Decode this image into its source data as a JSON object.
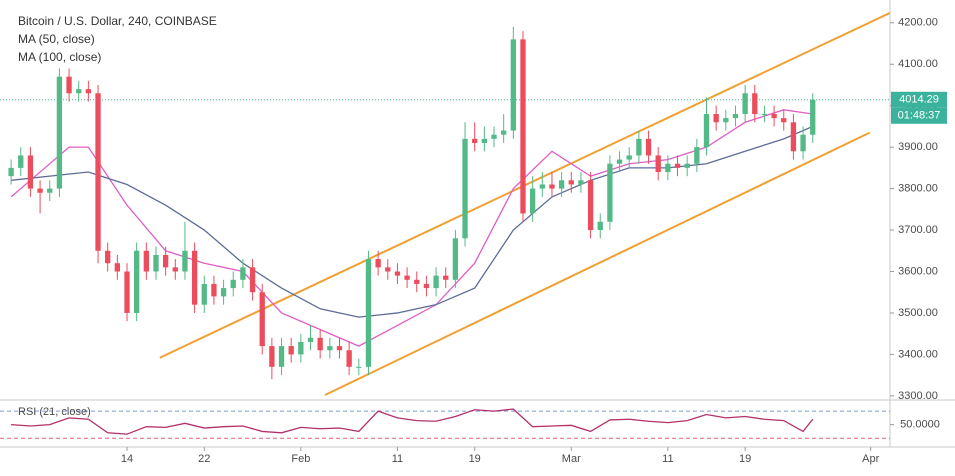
{
  "chart_data": {
    "type": "candlestick",
    "title": "Bitcoin / U.S. Dollar, 240, COINBASE",
    "x": [
      2,
      3,
      4,
      5,
      6,
      7,
      8,
      9,
      10,
      11,
      12,
      13,
      14,
      15,
      16,
      17,
      18,
      19,
      20,
      21,
      22,
      23,
      24,
      25,
      26,
      27,
      28,
      29,
      30,
      31,
      32,
      33,
      34,
      35,
      36,
      37,
      38,
      39,
      40,
      41,
      42,
      43,
      44,
      45,
      46,
      47,
      48,
      49,
      50,
      51,
      52,
      53,
      54,
      55,
      56,
      57,
      58,
      59,
      60,
      61,
      62,
      63,
      64,
      65,
      66,
      67,
      68,
      69,
      70,
      71,
      72,
      73,
      74,
      75,
      76,
      77,
      78,
      79,
      80,
      81,
      82,
      83,
      84,
      85
    ],
    "open": [
      3830,
      3850,
      3880,
      3800,
      3790,
      3800,
      4070,
      4030,
      4040,
      4030,
      3650,
      3620,
      3600,
      3500,
      3650,
      3600,
      3640,
      3610,
      3600,
      3650,
      3520,
      3570,
      3540,
      3560,
      3580,
      3610,
      3550,
      3420,
      3370,
      3420,
      3400,
      3430,
      3440,
      3410,
      3420,
      3410,
      3370,
      3370,
      3630,
      3610,
      3600,
      3590,
      3580,
      3570,
      3560,
      3590,
      3580,
      3680,
      3920,
      3910,
      3920,
      3930,
      3940,
      4160,
      3740,
      3800,
      3810,
      3800,
      3820,
      3810,
      3820,
      3700,
      3720,
      3860,
      3870,
      3880,
      3920,
      3880,
      3840,
      3860,
      3850,
      3860,
      3900,
      3980,
      3960,
      3970,
      3980,
      4030,
      3980,
      3980,
      3970,
      3960,
      3890,
      3930
    ],
    "high": [
      3870,
      3900,
      3900,
      3820,
      3820,
      4090,
      4090,
      4060,
      4060,
      4050,
      3670,
      3640,
      3620,
      3670,
      3670,
      3660,
      3660,
      3630,
      3720,
      3670,
      3590,
      3590,
      3580,
      3600,
      3630,
      3630,
      3570,
      3440,
      3440,
      3440,
      3450,
      3470,
      3460,
      3440,
      3440,
      3430,
      3390,
      3650,
      3650,
      3630,
      3620,
      3610,
      3600,
      3590,
      3610,
      3610,
      3700,
      3960,
      3960,
      3950,
      3950,
      3980,
      4190,
      4180,
      3830,
      3840,
      3840,
      3840,
      3840,
      3840,
      3840,
      3740,
      3880,
      3890,
      3900,
      3940,
      3940,
      3900,
      3880,
      3880,
      3880,
      3920,
      4020,
      4000,
      3990,
      4000,
      4050,
      4050,
      4000,
      4000,
      3990,
      3980,
      3950,
      4030
    ],
    "low": [
      3810,
      3830,
      3780,
      3740,
      3770,
      3780,
      4010,
      4010,
      4010,
      3620,
      3600,
      3580,
      3480,
      3480,
      3580,
      3580,
      3590,
      3580,
      3580,
      3500,
      3500,
      3520,
      3520,
      3540,
      3560,
      3530,
      3400,
      3340,
      3350,
      3380,
      3380,
      3410,
      3390,
      3390,
      3390,
      3350,
      3350,
      3350,
      3590,
      3580,
      3570,
      3560,
      3550,
      3540,
      3540,
      3560,
      3560,
      3660,
      3890,
      3890,
      3900,
      3910,
      3920,
      3720,
      3720,
      3780,
      3780,
      3780,
      3790,
      3790,
      3680,
      3680,
      3700,
      3840,
      3850,
      3860,
      3860,
      3820,
      3820,
      3830,
      3830,
      3840,
      3880,
      3940,
      3940,
      3950,
      3960,
      3960,
      3960,
      3950,
      3940,
      3870,
      3870,
      3910
    ],
    "close": [
      3850,
      3880,
      3800,
      3790,
      3800,
      4070,
      4030,
      4040,
      4030,
      3650,
      3620,
      3600,
      3500,
      3650,
      3600,
      3640,
      3610,
      3600,
      3650,
      3520,
      3570,
      3540,
      3560,
      3580,
      3610,
      3550,
      3420,
      3370,
      3420,
      3400,
      3430,
      3440,
      3410,
      3420,
      3410,
      3370,
      3370,
      3630,
      3610,
      3600,
      3590,
      3580,
      3570,
      3560,
      3590,
      3580,
      3680,
      3920,
      3910,
      3920,
      3930,
      3940,
      4160,
      3740,
      3800,
      3810,
      3800,
      3820,
      3810,
      3820,
      3700,
      3720,
      3860,
      3870,
      3880,
      3920,
      3880,
      3840,
      3860,
      3850,
      3860,
      3900,
      3980,
      3960,
      3970,
      3980,
      4030,
      3980,
      3980,
      3970,
      3960,
      3890,
      3930,
      4014.29
    ],
    "up_color": "#53b987",
    "down_color": "#eb4d5c",
    "xlim": [
      0.85,
      93
    ],
    "xticks": [
      {
        "value": 14,
        "label": "14"
      },
      {
        "value": 22,
        "label": "22"
      },
      {
        "value": 32,
        "label": "Feb"
      },
      {
        "value": 42,
        "label": "11"
      },
      {
        "value": 50,
        "label": "19"
      },
      {
        "value": 60,
        "label": "Mar"
      },
      {
        "value": 70,
        "label": "11"
      },
      {
        "value": 78,
        "label": "19"
      },
      {
        "value": 91,
        "label": "Apr"
      }
    ],
    "ylim": [
      3290,
      4255
    ],
    "yticks": [
      {
        "value": 3300,
        "label": "3300.00"
      },
      {
        "value": 3400,
        "label": "3400.00"
      },
      {
        "value": 3500,
        "label": "3500.00"
      },
      {
        "value": 3600,
        "label": "3600.00"
      },
      {
        "value": 3700,
        "label": "3700.00"
      },
      {
        "value": 3800,
        "label": "3800.00"
      },
      {
        "value": 3900,
        "label": "3900.00"
      },
      {
        "value": 4000,
        "label": "4000.00"
      },
      {
        "value": 4100,
        "label": "4100.00"
      },
      {
        "value": 4200,
        "label": "4200.00"
      }
    ],
    "moving_averages": [
      {
        "name": "MA (50, close)",
        "color": "#e05dc6",
        "x": [
          2,
          4,
          8,
          10,
          14,
          18,
          22,
          26,
          30,
          34,
          38,
          42,
          46,
          50,
          54,
          58,
          62,
          66,
          70,
          74,
          78,
          82,
          85
        ],
        "values": [
          3780,
          3820,
          3900,
          3900,
          3760,
          3650,
          3620,
          3600,
          3500,
          3460,
          3420,
          3470,
          3520,
          3620,
          3800,
          3890,
          3830,
          3860,
          3870,
          3900,
          3960,
          3990,
          3980
        ]
      },
      {
        "name": "MA (100, close)",
        "color": "#5d6b98",
        "x": [
          2,
          6,
          10,
          14,
          18,
          22,
          26,
          30,
          34,
          38,
          42,
          46,
          50,
          54,
          58,
          62,
          66,
          70,
          74,
          78,
          82,
          85
        ],
        "values": [
          3820,
          3830,
          3840,
          3810,
          3760,
          3700,
          3620,
          3560,
          3510,
          3490,
          3500,
          3520,
          3560,
          3700,
          3780,
          3820,
          3850,
          3850,
          3860,
          3890,
          3920,
          3950
        ]
      }
    ],
    "channel": [
      {
        "color": "#f0a030",
        "x": [
          17.4,
          93
        ],
        "values": [
          3392,
          4224
        ]
      },
      {
        "color": "#f0a030",
        "x": [
          34.5,
          90.9
        ],
        "values": [
          3302,
          3935
        ]
      }
    ],
    "last_price": 4014.29,
    "last_price_color": "#3bb39c",
    "countdown": "01:48:37",
    "rsi": {
      "name": "RSI (21, close)",
      "color": "#b3306a",
      "x": [
        2,
        4,
        6,
        8,
        10,
        12,
        14,
        16,
        18,
        20,
        22,
        24,
        26,
        28,
        30,
        32,
        34,
        36,
        38,
        40,
        42,
        44,
        46,
        48,
        50,
        52,
        54,
        56,
        58,
        60,
        62,
        64,
        66,
        68,
        70,
        72,
        74,
        76,
        78,
        80,
        82,
        84,
        85
      ],
      "values": [
        50,
        48,
        50,
        60,
        58,
        38,
        36,
        47,
        46,
        52,
        45,
        47,
        48,
        40,
        38,
        46,
        44,
        45,
        40,
        70,
        60,
        56,
        55,
        62,
        72,
        70,
        73,
        47,
        48,
        49,
        40,
        57,
        58,
        55,
        53,
        56,
        65,
        60,
        62,
        58,
        56,
        40,
        58
      ],
      "ylim": [
        17,
        82
      ],
      "yticks": [
        {
          "value": 50,
          "label": "50.0000"
        }
      ],
      "bands": [
        70,
        30
      ],
      "band_colors": [
        "#7d9ad6",
        "#e0607a"
      ]
    }
  }
}
